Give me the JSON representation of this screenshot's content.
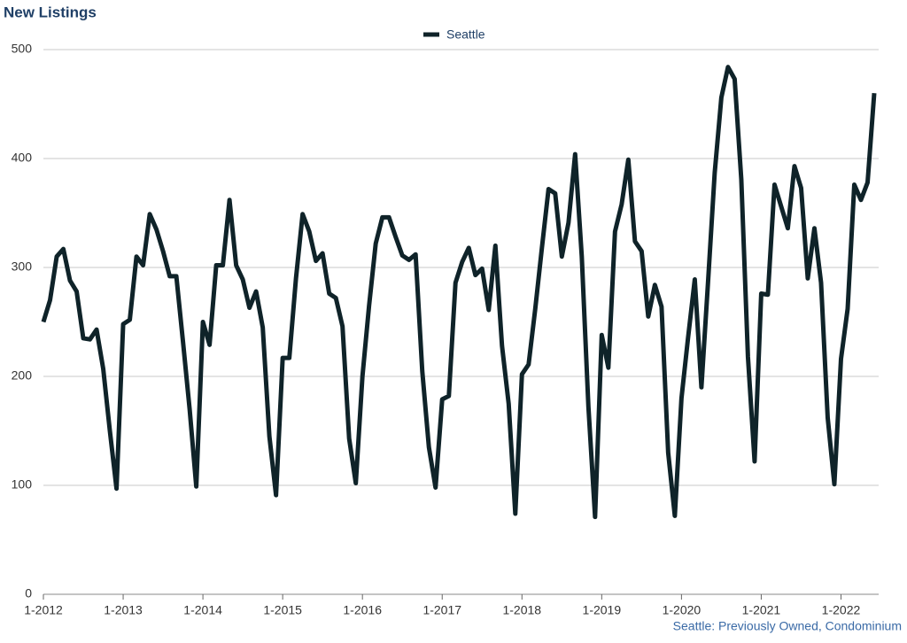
{
  "chart_data": {
    "type": "line",
    "title": "New Listings",
    "footnote": "Seattle: Previously Owned, Condominium",
    "categories": [
      "1-2012",
      null,
      null,
      null,
      null,
      null,
      null,
      null,
      null,
      null,
      null,
      null,
      "1-2013",
      null,
      null,
      null,
      null,
      null,
      null,
      null,
      null,
      null,
      null,
      null,
      "1-2014",
      null,
      null,
      null,
      null,
      null,
      null,
      null,
      null,
      null,
      null,
      null,
      "1-2015",
      null,
      null,
      null,
      null,
      null,
      null,
      null,
      null,
      null,
      null,
      null,
      "1-2016",
      null,
      null,
      null,
      null,
      null,
      null,
      null,
      null,
      null,
      null,
      null,
      "1-2017",
      null,
      null,
      null,
      null,
      null,
      null,
      null,
      null,
      null,
      null,
      null,
      "1-2018",
      null,
      null,
      null,
      null,
      null,
      null,
      null,
      null,
      null,
      null,
      null,
      "1-2019",
      null,
      null,
      null,
      null,
      null,
      null,
      null,
      null,
      null,
      null,
      null,
      "1-2020",
      null,
      null,
      null,
      null,
      null,
      null,
      null,
      null,
      null,
      null,
      null,
      "1-2021",
      null,
      null,
      null,
      null,
      null,
      null,
      null,
      null,
      null,
      null,
      null,
      "1-2022",
      null,
      null,
      null,
      null,
      null
    ],
    "series": [
      {
        "name": "Seattle",
        "color": "#0f2329",
        "values": [
          250,
          270,
          310,
          317,
          288,
          278,
          235,
          234,
          243,
          207,
          150,
          97,
          248,
          252,
          310,
          302,
          349,
          335,
          315,
          292,
          292,
          232,
          170,
          99,
          250,
          229,
          302,
          302,
          362,
          302,
          289,
          263,
          278,
          245,
          145,
          91,
          217,
          217,
          290,
          349,
          333,
          306,
          313,
          276,
          272,
          246,
          143,
          102,
          200,
          265,
          322,
          346,
          346,
          328,
          311,
          307,
          312,
          205,
          135,
          98,
          179,
          182,
          286,
          305,
          318,
          293,
          299,
          261,
          320,
          228,
          175,
          74,
          202,
          211,
          262,
          318,
          372,
          368,
          310,
          341,
          404,
          310,
          172,
          71,
          238,
          208,
          333,
          358,
          399,
          324,
          315,
          255,
          284,
          264,
          130,
          72,
          180,
          236,
          289,
          190,
          287,
          387,
          456,
          484,
          473,
          381,
          218,
          122,
          276,
          275,
          376,
          356,
          336,
          393,
          373,
          290,
          336,
          286,
          162,
          101,
          216,
          262,
          376,
          362,
          378,
          460
        ]
      }
    ],
    "ylim": [
      0,
      500
    ],
    "yticks": [
      0,
      100,
      200,
      300,
      400,
      500
    ],
    "grid": true,
    "legend": "top"
  }
}
